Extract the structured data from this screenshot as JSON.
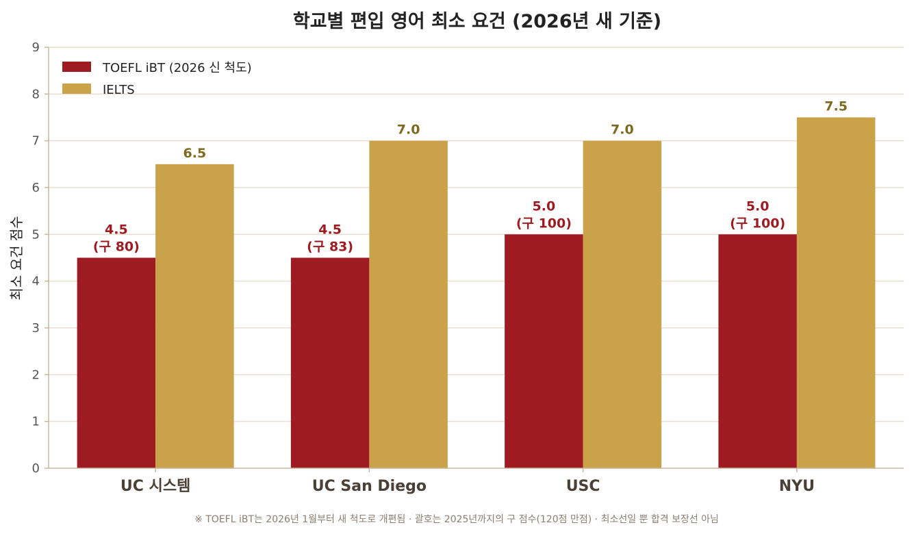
{
  "chart_data": {
    "type": "bar",
    "title": "학교별 편입 영어 최소 요건 (2026년 새 기준)",
    "ylabel": "최소 요건 점수",
    "xlabel": "",
    "ylim": [
      0,
      9
    ],
    "yticks": [
      "0",
      "1",
      "2",
      "3",
      "4",
      "5",
      "6",
      "7",
      "8",
      "9"
    ],
    "grid": true,
    "legend_position": "top-left",
    "categories": [
      "UC 시스템",
      "UC San Diego",
      "USC",
      "NYU"
    ],
    "series": [
      {
        "name": "TOEFL iBT (2026 신 척도)",
        "color": "#9e1b21",
        "label_color": "#9e1b21",
        "values": [
          4.5,
          4.5,
          5.0,
          5.0
        ],
        "labels": [
          [
            "4.5",
            "(구 80)"
          ],
          [
            "4.5",
            "(구 83)"
          ],
          [
            "5.0",
            "(구 100)"
          ],
          [
            "5.0",
            "(구 100)"
          ]
        ]
      },
      {
        "name": "IELTS",
        "color": "#c9a24a",
        "label_color": "#7d6a1e",
        "values": [
          6.5,
          7.0,
          7.0,
          7.5
        ],
        "labels": [
          [
            "6.5"
          ],
          [
            "7.0"
          ],
          [
            "7.0"
          ],
          [
            "7.5"
          ]
        ]
      }
    ],
    "footnote": "※ TOEFL iBT는 2026년 1월부터 새 척도로 개편됨 · 괄호는 2025년까지의 구 점수(120점 만점) · 최소선일 뿐 합격 보장선 아님"
  },
  "colors": {
    "grid": "#e9dfd0",
    "axis": "#c8b89e",
    "tick_text": "#555555",
    "category_text": "#4a4035"
  }
}
